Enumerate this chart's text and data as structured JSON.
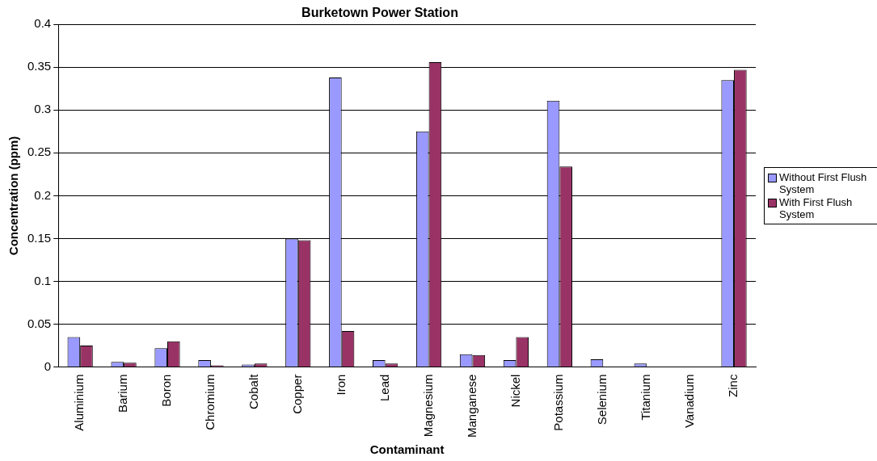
{
  "chart_data": {
    "type": "bar",
    "title": "Burketown Power Station",
    "xlabel": "Contaminant",
    "ylabel": "Concentration (ppm)",
    "categories": [
      "Aluminium",
      "Barium",
      "Boron",
      "Chromium",
      "Cobalt",
      "Copper",
      "Iron",
      "Lead",
      "Magnesium",
      "Manganese",
      "Nickel",
      "Potassium",
      "Selenium",
      "Titanium",
      "Vanadium",
      "Zinc"
    ],
    "series": [
      {
        "name": "Without First Flush System",
        "color": "#9999ff",
        "values": [
          0.035,
          0.006,
          0.022,
          0.008,
          0.003,
          0.15,
          0.338,
          0.008,
          0.275,
          0.015,
          0.008,
          0.311,
          0.009,
          0.004,
          0,
          0.335
        ]
      },
      {
        "name": "With First Flush System",
        "color": "#993366",
        "values": [
          0.025,
          0.005,
          0.03,
          0.002,
          0.004,
          0.148,
          0.042,
          0.004,
          0.356,
          0.014,
          0.035,
          0.234,
          0,
          0,
          0,
          0.347
        ]
      }
    ],
    "ylim": [
      0,
      0.4
    ],
    "yticks": [
      0,
      0.05,
      0.1,
      0.15,
      0.2,
      0.25,
      0.3,
      0.35,
      0.4
    ],
    "grid": "y",
    "legend": "right"
  }
}
